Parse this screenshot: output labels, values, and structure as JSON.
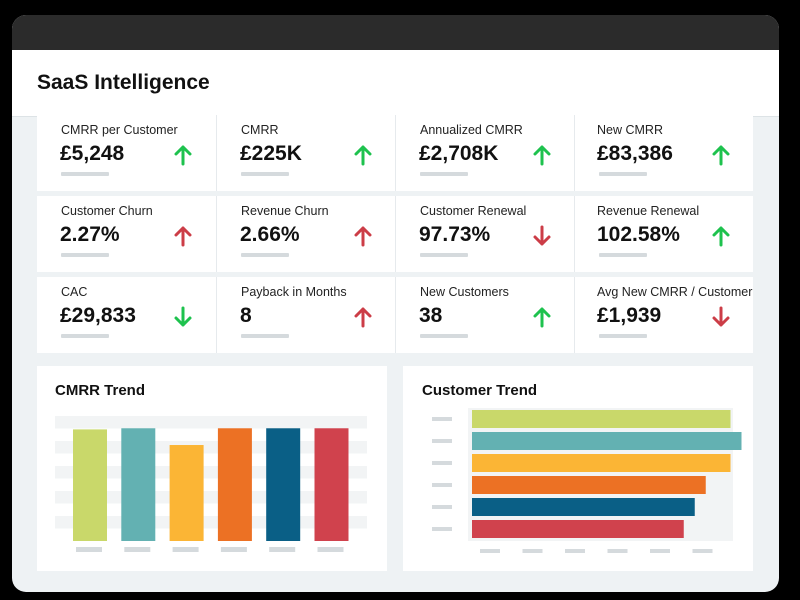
{
  "app": {
    "title": "SaaS Intelligence"
  },
  "colors": {
    "up": "#1ec24e",
    "down": "#cc3d47",
    "palette": [
      "#c9d86a",
      "#63b1b2",
      "#fbb535",
      "#ec7124",
      "#0a5f86",
      "#d0424d"
    ]
  },
  "kpis": [
    {
      "label": "CMRR per Customer",
      "value": "£5,248",
      "trend": "up"
    },
    {
      "label": "CMRR",
      "value": "£225K",
      "trend": "up"
    },
    {
      "label": "Annualized CMRR",
      "value": "£2,708K",
      "trend": "up"
    },
    {
      "label": "New CMRR",
      "value": "£83,386",
      "trend": "up"
    },
    {
      "label": "Customer Churn",
      "value": "2.27%",
      "trend": "up-red"
    },
    {
      "label": "Revenue Churn",
      "value": "2.66%",
      "trend": "up-red"
    },
    {
      "label": "Customer Renewal",
      "value": "97.73%",
      "trend": "down-red"
    },
    {
      "label": "Revenue Renewal",
      "value": "102.58%",
      "trend": "up"
    },
    {
      "label": "CAC",
      "value": "£29,833",
      "trend": "down-green"
    },
    {
      "label": "Payback in Months",
      "value": "8",
      "trend": "up-red"
    },
    {
      "label": "New Customers",
      "value": "38",
      "trend": "up"
    },
    {
      "label": "Avg New CMRR / Customer",
      "value": "£1,939",
      "trend": "down-red"
    }
  ],
  "chart_data": [
    {
      "type": "bar",
      "title": "CMRR Trend",
      "categories": [
        "",
        "",
        "",
        "",
        "",
        ""
      ],
      "values": [
        100,
        101,
        86,
        101,
        101,
        101
      ],
      "ylim": [
        0,
        112
      ],
      "grid": true,
      "colors": [
        "#c9d86a",
        "#63b1b2",
        "#fbb535",
        "#ec7124",
        "#0a5f86",
        "#d0424d"
      ]
    },
    {
      "type": "bar",
      "orientation": "horizontal",
      "title": "Customer Trend",
      "categories": [
        "",
        "",
        "",
        "",
        "",
        ""
      ],
      "values": [
        94,
        98,
        94,
        85,
        81,
        77
      ],
      "xlim": [
        0,
        100
      ],
      "grid": false,
      "colors": [
        "#c9d86a",
        "#63b1b2",
        "#fbb535",
        "#ec7124",
        "#0a5f86",
        "#d0424d"
      ]
    }
  ]
}
